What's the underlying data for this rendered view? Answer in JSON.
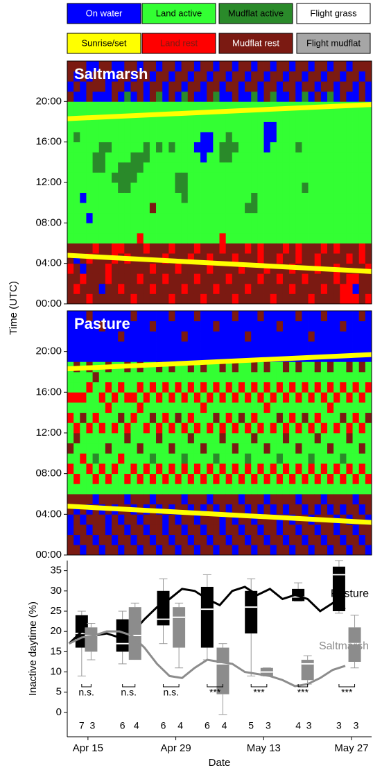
{
  "legend": [
    {
      "name": "On water",
      "color": "#0000ff",
      "text": "#ffffff"
    },
    {
      "name": "Land active",
      "color": "#33ff33",
      "text": "#000000"
    },
    {
      "name": "Mudflat active",
      "color": "#2a8a2a",
      "text": "#000000"
    },
    {
      "name": "Flight grass",
      "color": "#ffffff",
      "text": "#000000"
    },
    {
      "name": "Sunrise/set",
      "color": "#ffff00",
      "text": "#000000"
    },
    {
      "name": "Land rest",
      "color": "#ff0000",
      "text": "#7b1a12"
    },
    {
      "name": "Mudflat rest",
      "color": "#7b1a12",
      "text": "#ffffff"
    },
    {
      "name": "Flight mudflat",
      "color": "#a6a6a6",
      "text": "#000000"
    }
  ],
  "chart_data": [
    {
      "type": "raster",
      "title": "Saltmarsh",
      "ylabel": "Time (UTC)",
      "ylim": [
        0,
        24
      ],
      "yticks": [
        {
          "value": 0,
          "label": "00:00"
        },
        {
          "value": 4,
          "label": "04:00"
        },
        {
          "value": 8,
          "label": "08:00"
        },
        {
          "value": 12,
          "label": "12:00"
        },
        {
          "value": 16,
          "label": "16:00"
        },
        {
          "value": 20,
          "label": "20:00"
        }
      ],
      "sunrise": [
        4.8,
        3.2
      ],
      "sunset": [
        18.3,
        19.7
      ],
      "states": [
        "666566111111111111116066",
        "656606111111111121110606",
        "665066111101111111110066",
        "566656110111111111116600",
        "666665111111122111110660",
        "606666111111122211110666",
        "665566111111111211110006",
        "666655111111211111116600",
        "656665111112221111110660",
        "666656111112221111112066",
        "566666111111222111110606",
        "665666511111122111116660",
        "666665111111112211110066",
        "656566111611111111116606",
        "666666111111111211112660",
        "665656111111111111110066",
        "566665111111111211116606",
        "666566111112211111110660",
        "656666111122211111112066",
        "666656111111111111116606",
        "665665111111111011110660",
        "566666111111110001110066",
        "666556111111111001116606",
        "656666111111111111112660",
        "666665511111112211110066",
        "665666111111112221110606",
        "566656111111111211116660",
        "666566111111111111110066",
        "656665111211111111110606",
        "666666111221111111112660",
        "665655111111111111110066",
        "666566111111111000116606",
        "566666111111111100112660",
        "665656111111111111110066",
        "666665111111111111110606",
        "656566111111111111116660",
        "666655111111111211110066",
        "665666111112111111112606",
        "566666111111111111110660",
        "666556111111111111116066",
        "656665111111111111110606",
        "666666111111111111112660",
        "665565111111111111110066",
        "556666111111111111116606",
        "555656111111111111110660",
        "505666111111111111110066",
        "666655111111111111116606",
        "566566111111111111110066"
      ]
    },
    {
      "type": "raster",
      "title": "Pasture",
      "ylim": [
        0,
        24
      ],
      "yticks": [
        {
          "value": 0,
          "label": "00:00"
        },
        {
          "value": 4,
          "label": "04:00"
        },
        {
          "value": 8,
          "label": "08:00"
        },
        {
          "value": 12,
          "label": "12:00"
        },
        {
          "value": 16,
          "label": "16:00"
        },
        {
          "value": 20,
          "label": "20:00"
        }
      ],
      "sunrise": [
        4.8,
        3.2
      ],
      "sunset": [
        18.3,
        19.7
      ],
      "states": [
        "660066115161151511100000",
        "606606151116511511600000",
        "066066111511161511100000",
        "660606115111511151600006",
        "606660151211151116100000",
        "066606115111511511100060",
        "660066151161115151600000",
        "606606115111511511100000",
        "066066111511161151100600",
        "660660151116511511600000",
        "606606115111151511100006",
        "066066151161115151600000",
        "660606115111511511100000",
        "606660151211161151100060",
        "066606115116511511600000",
        "660066151111151151100000",
        "606606115161511511600006",
        "066066151111161151100000",
        "660660115211511511100600",
        "606606151116151151600000",
        "066066115111511511100006",
        "660606151161115151600000",
        "606660115111511511100000",
        "066606151211161151100060",
        "660066115116511511600000",
        "606606151111151151100000",
        "066066115161511511600006",
        "660660151111161151100000",
        "606606115211511511100600",
        "066066151116151151600000",
        "660606115111511511100006",
        "606660151161115151600000",
        "066606115111511511100000",
        "660066151211161151100060",
        "606606115116511511600000",
        "066066151111151151100000",
        "660660115161511511600006",
        "606606151111161151100000",
        "066066115211511511100600",
        "660606151116151151600000",
        "606660115111511511100006",
        "066606151161115151600000",
        "660066115111511511100000",
        "606606151211161151100060",
        "066066115116511511600000",
        "660660151111151151100000",
        "606606115161511511600006",
        "066066151111161151100000"
      ]
    },
    {
      "type": "box",
      "xlabel": "Date",
      "ylabel": "Inactive daytime (%)",
      "xlim": [
        101.7,
        150.2
      ],
      "xticks": [
        {
          "value": 105,
          "label": "Apr 15"
        },
        {
          "value": 119,
          "label": "Apr 29"
        },
        {
          "value": 133,
          "label": "May 13"
        },
        {
          "value": 147,
          "label": "May 27"
        }
      ],
      "ylim": [
        -6,
        37.5
      ],
      "yticks": [
        0,
        5,
        10,
        15,
        20,
        25,
        30,
        35
      ],
      "significance": [
        "n.s.",
        "n.s.",
        "n.s.",
        "***",
        "***",
        "***",
        "***"
      ],
      "series": [
        {
          "name": "Pasture",
          "color": "#000000",
          "line_x": [
            102,
            104,
            106,
            108,
            110,
            112,
            114,
            116,
            118,
            120,
            122,
            124,
            126,
            128,
            130,
            132,
            134,
            136,
            138,
            140,
            142,
            144,
            146
          ],
          "line": [
            17,
            20,
            19,
            19.5,
            18.5,
            19.5,
            23,
            26,
            28,
            30.5,
            30,
            28,
            26.5,
            30,
            31,
            29,
            30.5,
            28,
            29,
            28,
            25,
            27,
            25.5
          ],
          "box_x": [
            104,
            110.5,
            117,
            124,
            131,
            138.5,
            145
          ],
          "whisker_low": [
            9,
            12,
            17,
            13,
            9,
            27.5,
            24.5
          ],
          "q1": [
            16,
            15,
            21.5,
            16,
            19.5,
            27.5,
            25
          ],
          "median": [
            19.5,
            17,
            23,
            25.5,
            26,
            28.5,
            34
          ],
          "q3": [
            24,
            23,
            30,
            31,
            30,
            30.5,
            36
          ],
          "whisker_high": [
            25,
            25,
            33,
            34,
            33,
            32,
            37.5
          ],
          "n": [
            7,
            6,
            6,
            6,
            5,
            4,
            3
          ]
        },
        {
          "name": "Saltmarsh",
          "color": "#8c8c8c",
          "line_x": [
            102,
            104,
            106,
            108,
            110,
            112,
            114,
            116,
            118,
            120,
            122,
            124,
            126,
            128,
            130,
            132,
            134,
            136,
            138,
            140,
            142,
            144,
            146
          ],
          "line": [
            17,
            18.5,
            19,
            20,
            20,
            19,
            16,
            12,
            9,
            8.5,
            11,
            13,
            12.5,
            12,
            10,
            9.5,
            9,
            8,
            6.5,
            7,
            8.5,
            10.5,
            11.5
          ],
          "box_x": [
            105.5,
            112.5,
            119.5,
            126.5,
            133.5,
            140,
            147.5
          ],
          "whisker_low": [
            13,
            14,
            11,
            -0.5,
            9,
            7,
            11
          ],
          "q1": [
            15,
            13,
            16,
            4.5,
            9,
            8,
            12.5
          ],
          "median": [
            19,
            19,
            23.5,
            12,
            10,
            12,
            17
          ],
          "q3": [
            21,
            26,
            26,
            16,
            11,
            13,
            21
          ],
          "whisker_high": [
            22,
            27,
            27,
            17,
            11,
            14,
            24
          ],
          "n": [
            3,
            4,
            4,
            4,
            3,
            3,
            3
          ]
        }
      ]
    }
  ]
}
